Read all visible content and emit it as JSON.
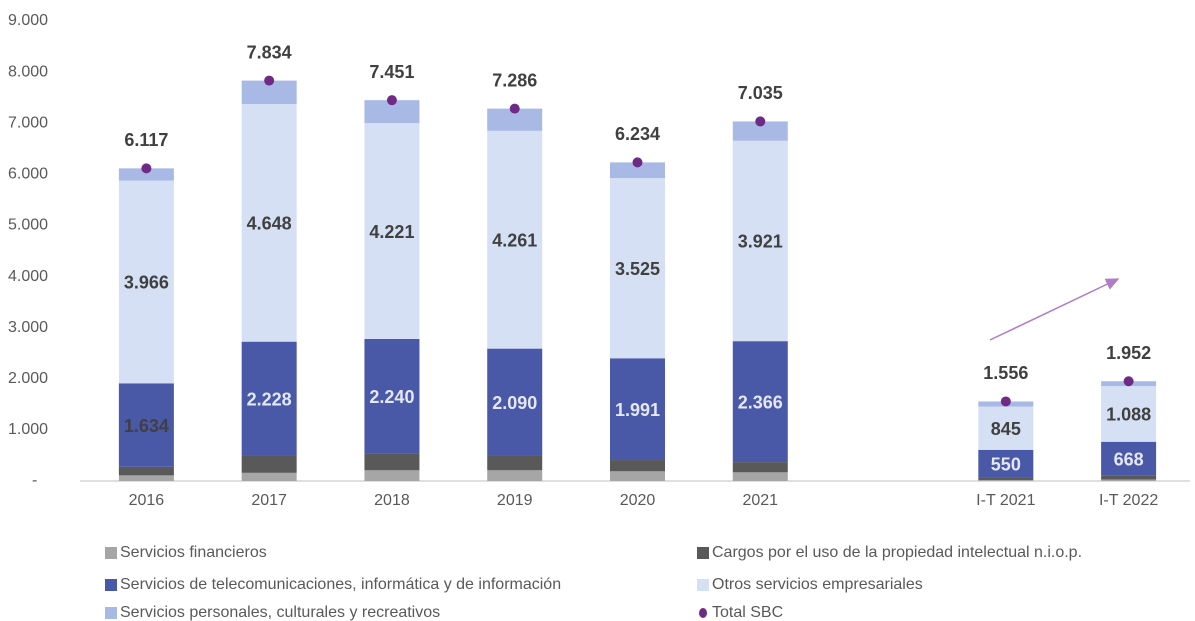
{
  "chart_data": {
    "type": "bar",
    "stacked": true,
    "categories": [
      "2016",
      "2017",
      "2018",
      "2019",
      "2020",
      "2021",
      null,
      "I-T 2021",
      "I-T 2022"
    ],
    "ylim": [
      0,
      9000
    ],
    "yticks": [
      {
        "value": 0,
        "label": "-"
      },
      {
        "value": 1000,
        "label": "1.000"
      },
      {
        "value": 2000,
        "label": "2.000"
      },
      {
        "value": 3000,
        "label": "3.000"
      },
      {
        "value": 4000,
        "label": "4.000"
      },
      {
        "value": 5000,
        "label": "5.000"
      },
      {
        "value": 6000,
        "label": "6.000"
      },
      {
        "value": 7000,
        "label": "7.000"
      },
      {
        "value": 8000,
        "label": "8.000"
      },
      {
        "value": 9000,
        "label": "9.000"
      }
    ],
    "grid": false,
    "series": [
      {
        "name": "Servicios financieros",
        "color": "#a6a6a6",
        "values": [
          110,
          160,
          210,
          210,
          190,
          170,
          null,
          20,
          30
        ]
      },
      {
        "name": "Cargos por el uso de la propiedad intelectual n.i.o.p.",
        "color": "#595959",
        "values": [
          167,
          338,
          330,
          290,
          220,
          200,
          null,
          40,
          70
        ]
      },
      {
        "name": "Servicios de telecomunicaciones, informática y de información",
        "color": "#4a58a8",
        "values": [
          1634,
          2228,
          2240,
          2090,
          1991,
          2366,
          null,
          550,
          668
        ],
        "value_labels": [
          "1.634",
          "2.228",
          "2.240",
          "2.090",
          "1.991",
          "2.366",
          null,
          "550",
          "668"
        ]
      },
      {
        "name": "Otros servicios empresariales",
        "color": "#d6e0f4",
        "values": [
          3966,
          4648,
          4221,
          4261,
          3525,
          3921,
          null,
          845,
          1088
        ],
        "value_labels": [
          "3.966",
          "4.648",
          "4.221",
          "4.261",
          "3.525",
          "3.921",
          null,
          "845",
          "1.088"
        ]
      },
      {
        "name": "Servicios personales, culturales y recreativos",
        "color": "#a9b9e5",
        "values": [
          240,
          460,
          450,
          435,
          308,
          378,
          null,
          101,
          96
        ]
      },
      {
        "name": "Total SBC",
        "type": "dot",
        "color": "#6f2a86",
        "values": [
          6117,
          7834,
          7451,
          7286,
          6234,
          7035,
          null,
          1556,
          1952
        ],
        "value_labels": [
          "6.117",
          "7.834",
          "7.451",
          "7.286",
          "6.234",
          "7.035",
          null,
          "1.556",
          "1.952"
        ]
      }
    ]
  }
}
